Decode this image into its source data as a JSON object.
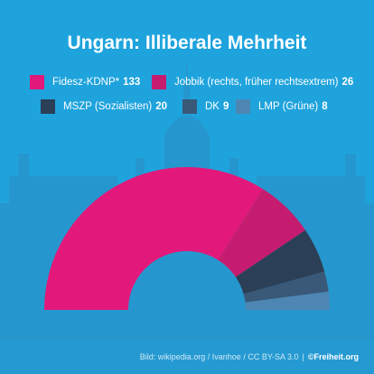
{
  "colors": {
    "background": "#1ea3dd",
    "fidesz": "#e2197a",
    "jobbik": "#c61c6f",
    "mszp": "#2b3f57",
    "dk": "#3a5878",
    "lmp": "#4d86b2"
  },
  "chart_data": {
    "type": "pie",
    "variant": "semicircle-parliament",
    "title": "Ungarn: Illiberale Mehrheit",
    "legend_placement": "top",
    "series": [
      {
        "name": "Fidesz-KDNP*",
        "value": 133,
        "color": "#e2197a"
      },
      {
        "name": "Jobbik (rechts, früher rechtsextrem)",
        "value": 26,
        "color": "#c61c6f"
      },
      {
        "name": "MSZP (Sozialisten)",
        "value": 20,
        "color": "#2b3f57"
      },
      {
        "name": "DK",
        "value": 9,
        "color": "#3a5878"
      },
      {
        "name": "LMP (Grüne)",
        "value": 8,
        "color": "#4d86b2"
      }
    ]
  },
  "footer": {
    "credit": "Bild: wikipedia.org / Ivanhoe / CC BY-SA 3.0",
    "separator": "|",
    "brand": "©Freiheit.org"
  }
}
